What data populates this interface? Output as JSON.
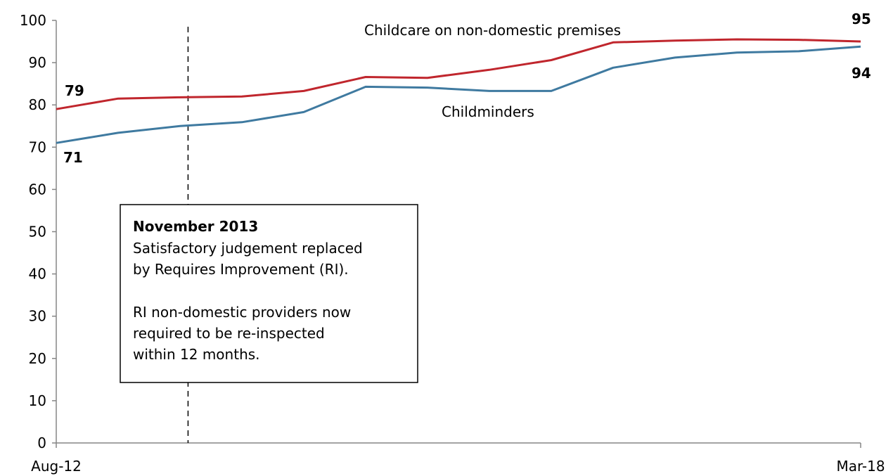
{
  "chart_data": {
    "type": "line",
    "title": "",
    "xlabel": "",
    "ylabel": "",
    "ylim": [
      0,
      100
    ],
    "yticks": [
      0,
      10,
      20,
      30,
      40,
      50,
      60,
      70,
      80,
      90,
      100
    ],
    "x_tick_labels": [
      "Aug-12",
      "Mar-18"
    ],
    "grid": false,
    "legend": "none",
    "series": [
      {
        "name": "Childcare on non-domestic premises",
        "color": "#c0262d",
        "values": [
          79,
          81.5,
          81.8,
          82,
          83.3,
          86.6,
          86.4,
          88.3,
          90.6,
          94.8,
          95.2,
          95.5,
          95.4,
          95
        ]
      },
      {
        "name": "Childminders",
        "color": "#3f7aa0",
        "values": [
          71,
          73.4,
          75,
          75.9,
          78.3,
          84.3,
          84.1,
          83.3,
          83.3,
          88.8,
          91.2,
          92.4,
          92.7,
          93.8
        ]
      }
    ],
    "start_labels": [
      "79",
      "71"
    ],
    "end_labels": [
      "95",
      "94"
    ],
    "annotation": {
      "title": "November 2013",
      "lines": [
        "Satisfactory judgement replaced",
        "by Requires Improvement (RI).",
        "",
        "RI non-domestic providers now",
        "required to be re-inspected",
        "within 12 months."
      ],
      "at_index": 2.13
    }
  }
}
